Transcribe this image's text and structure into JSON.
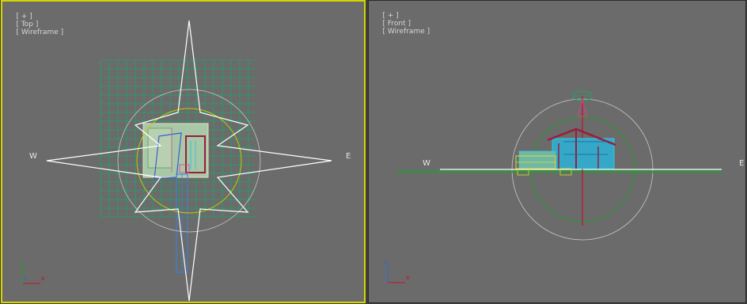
{
  "viewports": {
    "top": {
      "label_plus": "[ + ]",
      "label_view": "[ Top ]",
      "label_mode": "[ Wireframe ]",
      "compass_w": "W",
      "compass_e": "E",
      "axis_y": "y",
      "axis_z": "z",
      "axis_x": "x",
      "active": true
    },
    "front": {
      "label_plus": "[ + ]",
      "label_view": "[ Front ]",
      "label_mode": "[ Wireframe ]",
      "compass_w": "W",
      "compass_e": "E",
      "axis_z": "z",
      "axis_x": "x",
      "active": false
    }
  },
  "colors": {
    "viewport_bg": "#6b6b6b",
    "active_border": "#d4d400",
    "grid_green": "#1fa36a",
    "compass_white": "#ffffff",
    "ring_yellow": "#c8c800",
    "house_cyan": "#35c8d8",
    "house_maroon": "#9b1c3c",
    "axis_red": "#c8102e",
    "axis_green": "#1fa02a",
    "axis_blue": "#2a6bd8"
  }
}
